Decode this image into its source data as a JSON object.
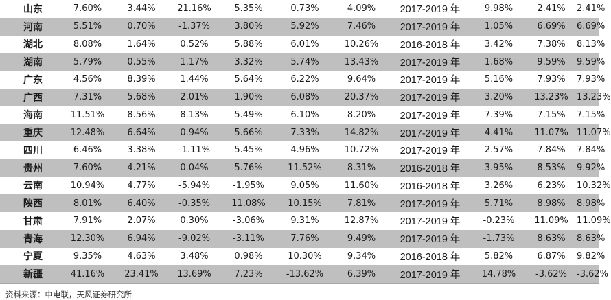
{
  "table": {
    "rows": [
      [
        "山东",
        "7.60%",
        "3.44%",
        "21.16%",
        "5.35%",
        "0.73%",
        "4.09%",
        "2017-2019 年",
        "9.98%",
        "2.41%",
        "2.41%"
      ],
      [
        "河南",
        "5.51%",
        "0.70%",
        "-1.37%",
        "3.80%",
        "5.92%",
        "7.46%",
        "2017-2019 年",
        "1.05%",
        "6.69%",
        "6.69%"
      ],
      [
        "湖北",
        "8.08%",
        "1.64%",
        "0.52%",
        "5.88%",
        "6.01%",
        "10.26%",
        "2016-2018 年",
        "3.42%",
        "7.38%",
        "8.13%"
      ],
      [
        "湖南",
        "5.79%",
        "0.55%",
        "1.17%",
        "3.32%",
        "5.74%",
        "13.43%",
        "2017-2019 年",
        "1.68%",
        "9.59%",
        "9.59%"
      ],
      [
        "广东",
        "4.56%",
        "8.39%",
        "1.44%",
        "5.64%",
        "6.22%",
        "9.64%",
        "2017-2019 年",
        "5.16%",
        "7.93%",
        "7.93%"
      ],
      [
        "广西",
        "7.31%",
        "5.68%",
        "2.01%",
        "1.90%",
        "6.08%",
        "20.37%",
        "2017-2019 年",
        "3.20%",
        "13.23%",
        "13.23%"
      ],
      [
        "海南",
        "11.51%",
        "8.56%",
        "8.13%",
        "5.49%",
        "6.10%",
        "8.20%",
        "2017-2019 年",
        "7.39%",
        "7.15%",
        "7.15%"
      ],
      [
        "重庆",
        "12.48%",
        "6.64%",
        "0.94%",
        "5.66%",
        "7.33%",
        "14.82%",
        "2017-2019 年",
        "4.41%",
        "11.07%",
        "11.07%"
      ],
      [
        "四川",
        "6.46%",
        "3.38%",
        "-1.11%",
        "5.45%",
        "4.96%",
        "10.72%",
        "2017-2019 年",
        "2.57%",
        "7.84%",
        "7.84%"
      ],
      [
        "贵州",
        "7.60%",
        "4.21%",
        "0.04%",
        "5.76%",
        "11.52%",
        "8.31%",
        "2016-2018 年",
        "3.95%",
        "8.53%",
        "9.92%"
      ],
      [
        "云南",
        "10.94%",
        "4.77%",
        "-5.94%",
        "-1.95%",
        "9.05%",
        "11.60%",
        "2016-2018 年",
        "3.26%",
        "6.23%",
        "10.32%"
      ],
      [
        "陕西",
        "8.01%",
        "6.40%",
        "-0.35%",
        "11.08%",
        "10.15%",
        "7.81%",
        "2017-2019 年",
        "5.71%",
        "8.98%",
        "8.98%"
      ],
      [
        "甘肃",
        "7.91%",
        "2.07%",
        "0.30%",
        "-3.06%",
        "9.31%",
        "12.87%",
        "2017-2019 年",
        "-0.23%",
        "11.09%",
        "11.09%"
      ],
      [
        "青海",
        "12.30%",
        "6.94%",
        "-9.02%",
        "-3.11%",
        "7.76%",
        "9.49%",
        "2017-2019 年",
        "-1.73%",
        "8.63%",
        "8.63%"
      ],
      [
        "宁夏",
        "9.35%",
        "4.63%",
        "3.48%",
        "0.98%",
        "10.30%",
        "9.34%",
        "2016-2018 年",
        "5.82%",
        "6.87%",
        "9.82%"
      ],
      [
        "新疆",
        "41.16%",
        "23.41%",
        "13.69%",
        "7.23%",
        "-13.62%",
        "6.39%",
        "2017-2019 年",
        "14.78%",
        "-3.62%",
        "-3.62%"
      ]
    ]
  },
  "source_note": "资料来源：中电联，天风证券研究所"
}
